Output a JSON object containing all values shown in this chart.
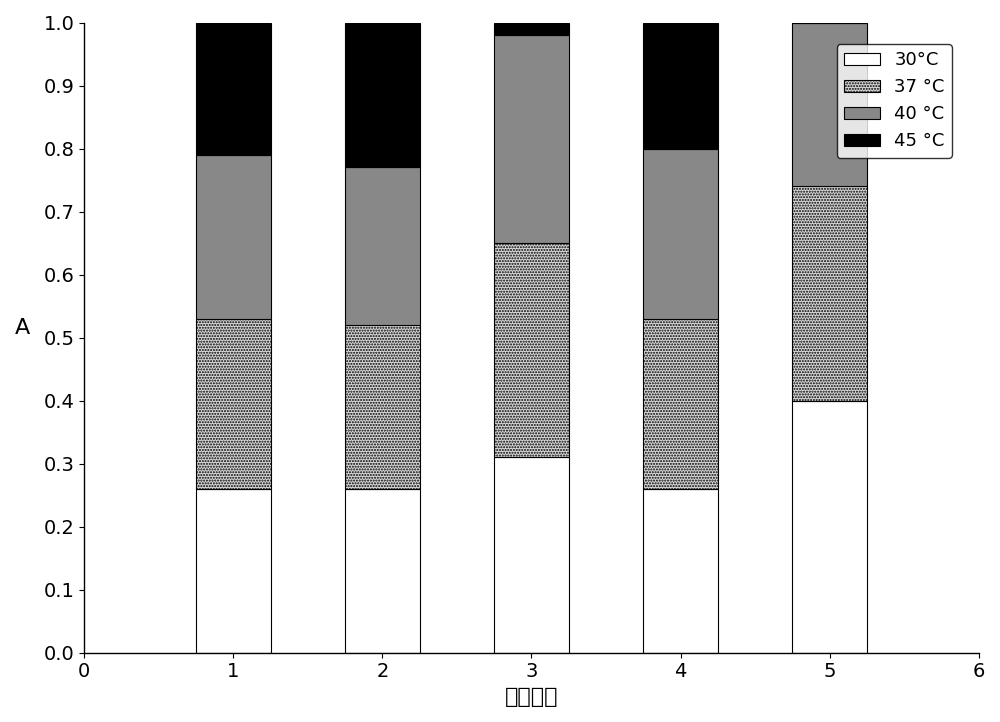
{
  "categories": [
    1,
    2,
    3,
    4,
    5
  ],
  "bar_width": 0.5,
  "values_30": [
    0.26,
    0.26,
    0.31,
    0.26,
    0.4
  ],
  "values_37": [
    0.27,
    0.26,
    0.34,
    0.27,
    0.34
  ],
  "values_40": [
    0.26,
    0.25,
    0.33,
    0.27,
    0.26
  ],
  "values_45": [
    0.21,
    0.23,
    0.02,
    0.2,
    0.0
  ],
  "color_30": "#ffffff",
  "color_37": "#d8d8d8",
  "color_40": "#888888",
  "color_45": "#000000",
  "xlabel": "菌株编号",
  "ylabel": "A",
  "xlim": [
    0,
    6
  ],
  "ylim": [
    0.0,
    1.0
  ],
  "legend_labels": [
    "30°C",
    "37 °C",
    "40 °C",
    "45 °C"
  ],
  "xlabel_fontsize": 16,
  "ylabel_fontsize": 16,
  "tick_fontsize": 14,
  "legend_fontsize": 13,
  "figsize": [
    10.0,
    7.22
  ],
  "dpi": 100
}
